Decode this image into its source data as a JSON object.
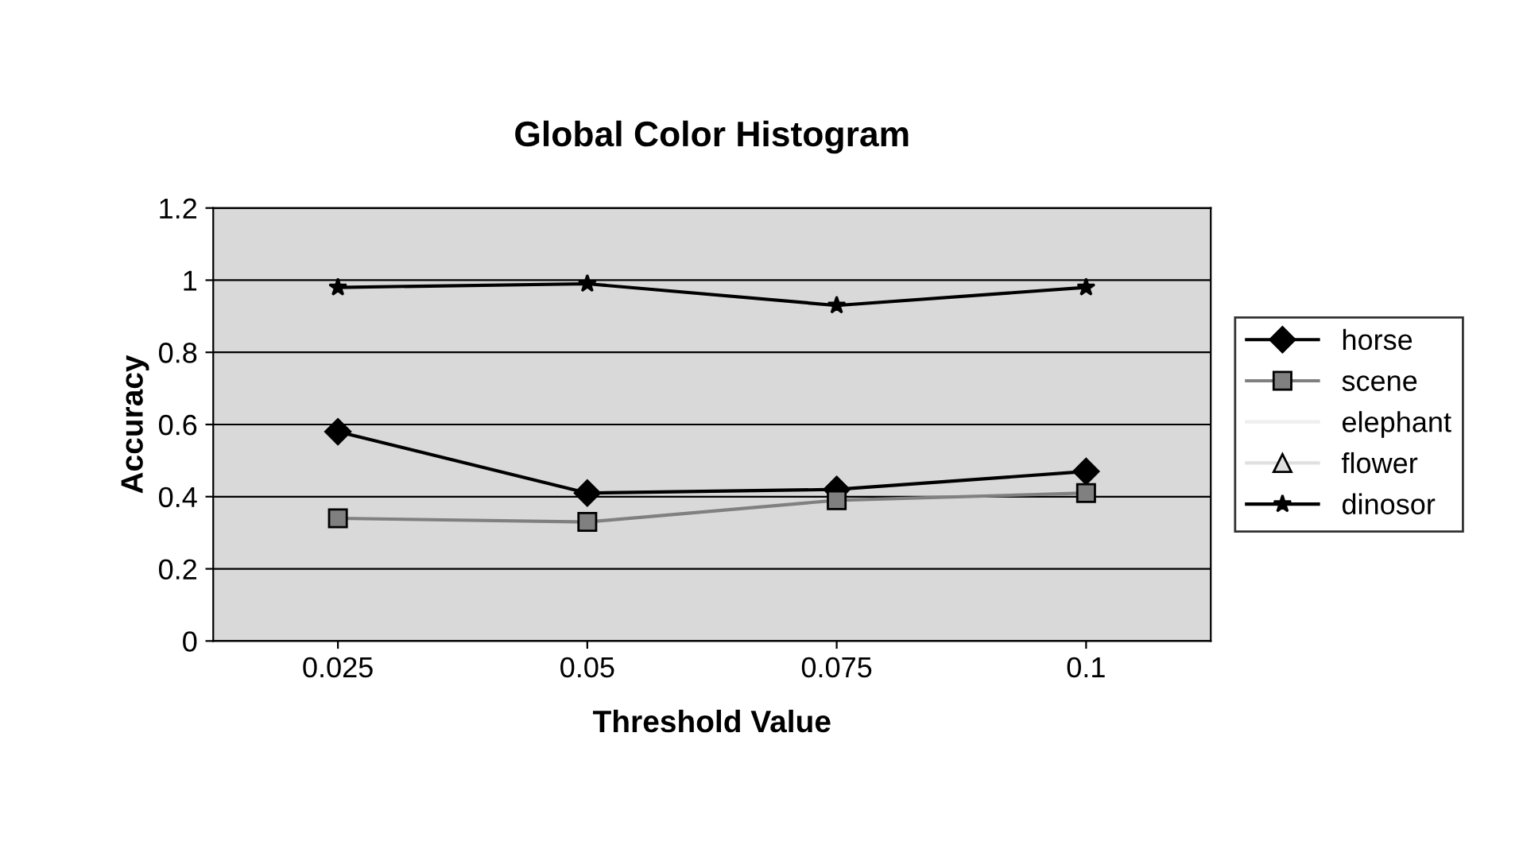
{
  "chart_data": {
    "type": "line",
    "title": "Global Color Histogram",
    "xlabel": "Threshold Value",
    "ylabel": "Accuracy",
    "categories": [
      "0.025",
      "0.05",
      "0.075",
      "0.1"
    ],
    "series": [
      {
        "name": "horse",
        "color": "#000000",
        "marker": "diamond",
        "values": [
          0.58,
          0.41,
          0.42,
          0.47
        ]
      },
      {
        "name": "scene",
        "color": "#808080",
        "marker": "square",
        "values": [
          0.34,
          0.33,
          0.39,
          0.41
        ]
      },
      {
        "name": "elephant",
        "color": "#eeeeee",
        "marker": "none",
        "values": [
          null,
          null,
          null,
          null
        ]
      },
      {
        "name": "flower",
        "color": "#e0e0e0",
        "marker": "triangle",
        "values": [
          null,
          null,
          null,
          null
        ]
      },
      {
        "name": "dinosor",
        "color": "#000000",
        "marker": "star",
        "values": [
          0.98,
          0.99,
          0.93,
          0.98
        ]
      }
    ],
    "ylim": [
      0,
      1.2
    ],
    "yticks": [
      {
        "value": 0,
        "label": "0"
      },
      0.2,
      0.4,
      0.6,
      0.8,
      {
        "value": 1,
        "label": "1"
      },
      1.2
    ],
    "grid": "y",
    "legend": "right"
  }
}
